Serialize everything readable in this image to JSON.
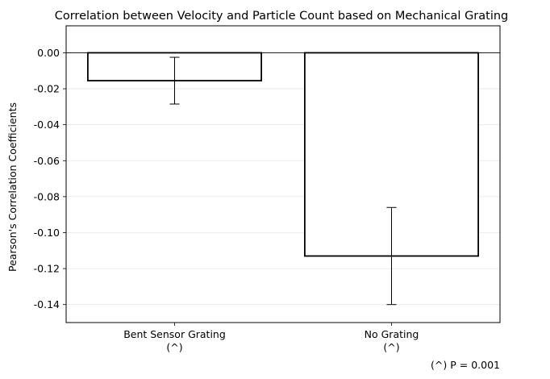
{
  "chart_data": {
    "type": "bar",
    "title": "Correlation between Velocity and Particle Count based on Mechanical Grating",
    "xlabel": "",
    "ylabel": "Pearson's Correlation Coefficients",
    "categories": [
      "Bent Sensor Grating",
      "No Grating"
    ],
    "category_marks": [
      "(^)",
      "(^)"
    ],
    "values": [
      -0.0155,
      -0.113
    ],
    "errors": [
      0.013,
      0.027
    ],
    "ylim": [
      -0.15,
      0.015
    ],
    "yticks": [
      "0.00",
      "-0.02",
      "-0.04",
      "-0.06",
      "-0.08",
      "-0.10",
      "-0.12",
      "-0.14"
    ],
    "ytick_values": [
      0.0,
      -0.02,
      -0.04,
      -0.06,
      -0.08,
      -0.1,
      -0.12,
      -0.14
    ],
    "grid": "horizontal, light",
    "bar_fill": "#ffffff",
    "bar_edge": "#000000",
    "annotation": "(^) P = 0.001"
  }
}
